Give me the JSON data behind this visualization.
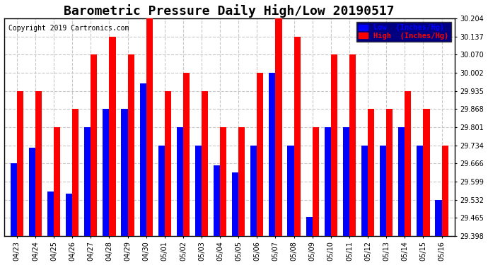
{
  "title": "Barometric Pressure Daily High/Low 20190517",
  "copyright_text": "Copyright 2019 Cartronics.com",
  "legend_low": "Low  (Inches/Hg)",
  "legend_high": "High  (Inches/Hg)",
  "categories": [
    "04/23",
    "04/24",
    "04/25",
    "04/26",
    "04/27",
    "04/28",
    "04/29",
    "04/30",
    "05/01",
    "05/02",
    "05/03",
    "05/04",
    "05/05",
    "05/06",
    "05/07",
    "05/08",
    "05/09",
    "05/10",
    "05/11",
    "05/12",
    "05/13",
    "05/14",
    "05/15",
    "05/16"
  ],
  "low_values": [
    29.668,
    29.726,
    29.563,
    29.555,
    29.801,
    29.868,
    29.868,
    29.962,
    29.734,
    29.802,
    29.734,
    29.66,
    29.634,
    29.734,
    30.002,
    29.734,
    29.468,
    29.801,
    29.801,
    29.734,
    29.734,
    29.801,
    29.734,
    29.532
  ],
  "high_values": [
    29.935,
    29.935,
    29.801,
    29.868,
    30.07,
    30.137,
    30.07,
    30.204,
    29.935,
    30.002,
    29.935,
    29.801,
    29.801,
    30.002,
    30.204,
    30.137,
    29.801,
    30.07,
    30.07,
    29.868,
    29.868,
    29.935,
    29.868,
    29.734
  ],
  "low_color": "#0000ff",
  "high_color": "#ff0000",
  "bg_color": "#ffffff",
  "plot_bg_color": "#ffffff",
  "grid_color": "#c8c8c8",
  "yticks": [
    29.398,
    29.465,
    29.532,
    29.599,
    29.666,
    29.734,
    29.801,
    29.868,
    29.935,
    30.002,
    30.07,
    30.137,
    30.204
  ],
  "ymin": 29.398,
  "ymax": 30.204,
  "title_fontsize": 13,
  "label_fontsize": 7.5,
  "tick_fontsize": 7,
  "copyright_fontsize": 7,
  "bar_width": 0.35
}
